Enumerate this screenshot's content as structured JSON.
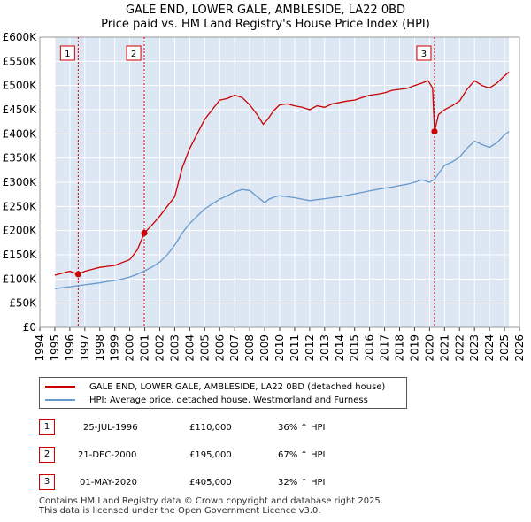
{
  "title_line1": "GALE END, LOWER GALE, AMBLESIDE, LA22 0BD",
  "title_line2": "Price paid vs. HM Land Registry's House Price Index (HPI)",
  "colors": {
    "property": "#cc0000",
    "hpi": "#6699cc",
    "marker_line": "#cc0000",
    "shade": "#dde6f3"
  },
  "legend": {
    "property_label": "GALE END, LOWER GALE, AMBLESIDE, LA22 0BD (detached house)",
    "hpi_label": "HPI: Average price, detached house, Westmorland and Furness"
  },
  "sales": [
    {
      "num": "1",
      "date": "25-JUL-1996",
      "price": "£110,000",
      "hpi_change": "36% ↑ HPI"
    },
    {
      "num": "2",
      "date": "21-DEC-2000",
      "price": "£195,000",
      "hpi_change": "67% ↑ HPI"
    },
    {
      "num": "3",
      "date": "01-MAY-2020",
      "price": "£405,000",
      "hpi_change": "32% ↑ HPI"
    }
  ],
  "footer": {
    "line1": "Contains HM Land Registry data © Crown copyright and database right 2025.",
    "line2": "This data is licensed under the Open Government Licence v3.0."
  },
  "chart_data": {
    "type": "line",
    "title": "GALE END, LOWER GALE, AMBLESIDE, LA22 0BD — Price paid vs. HM Land Registry's House Price Index (HPI)",
    "xlabel": "",
    "ylabel": "",
    "xlim": [
      1994,
      2026
    ],
    "ylim": [
      0,
      600000
    ],
    "x_ticks": [
      "1994",
      "1995",
      "1996",
      "1997",
      "1998",
      "1999",
      "2000",
      "2001",
      "2002",
      "2003",
      "2004",
      "2005",
      "2006",
      "2007",
      "2008",
      "2009",
      "2010",
      "2011",
      "2012",
      "2013",
      "2014",
      "2015",
      "2016",
      "2017",
      "2018",
      "2019",
      "2020",
      "2021",
      "2022",
      "2023",
      "2024",
      "2025",
      "2026"
    ],
    "y_ticks": [
      {
        "v": 0,
        "label": "£0"
      },
      {
        "v": 50000,
        "label": "£50K"
      },
      {
        "v": 100000,
        "label": "£100K"
      },
      {
        "v": 150000,
        "label": "£150K"
      },
      {
        "v": 200000,
        "label": "£200K"
      },
      {
        "v": 250000,
        "label": "£250K"
      },
      {
        "v": 300000,
        "label": "£300K"
      },
      {
        "v": 350000,
        "label": "£350K"
      },
      {
        "v": 400000,
        "label": "£400K"
      },
      {
        "v": 450000,
        "label": "£450K"
      },
      {
        "v": 500000,
        "label": "£500K"
      },
      {
        "v": 550000,
        "label": "£550K"
      },
      {
        "v": 600000,
        "label": "£600K"
      }
    ],
    "data_range": [
      1995.0,
      2025.3
    ],
    "sale_markers": [
      {
        "label": "1",
        "x": 1996.56,
        "y": 110000
      },
      {
        "label": "2",
        "x": 2000.97,
        "y": 195000
      },
      {
        "label": "3",
        "x": 2020.33,
        "y": 405000
      }
    ],
    "series": [
      {
        "name": "GALE END, LOWER GALE, AMBLESIDE, LA22 0BD (detached house)",
        "x": [
          1995.0,
          1995.5,
          1996.0,
          1996.56,
          1997.0,
          1997.5,
          1998.0,
          1998.5,
          1999.0,
          1999.5,
          2000.0,
          2000.5,
          2000.97,
          2001.5,
          2002.0,
          2002.5,
          2003.0,
          2003.5,
          2004.0,
          2004.5,
          2005.0,
          2005.5,
          2006.0,
          2006.5,
          2007.0,
          2007.5,
          2008.0,
          2008.5,
          2008.9,
          2009.2,
          2009.6,
          2010.0,
          2010.5,
          2011.0,
          2011.5,
          2012.0,
          2012.5,
          2013.0,
          2013.5,
          2014.0,
          2014.5,
          2015.0,
          2015.5,
          2016.0,
          2016.5,
          2017.0,
          2017.5,
          2018.0,
          2018.5,
          2019.0,
          2019.5,
          2019.9,
          2020.2,
          2020.33,
          2020.6,
          2021.0,
          2021.5,
          2022.0,
          2022.5,
          2023.0,
          2023.5,
          2024.0,
          2024.5,
          2025.0,
          2025.3
        ],
        "values": [
          108000,
          112000,
          116000,
          110000,
          116000,
          120000,
          124000,
          126000,
          128000,
          134000,
          140000,
          160000,
          195000,
          212000,
          230000,
          250000,
          270000,
          330000,
          370000,
          400000,
          430000,
          450000,
          470000,
          473000,
          480000,
          475000,
          460000,
          440000,
          420000,
          430000,
          448000,
          460000,
          462000,
          458000,
          455000,
          450000,
          458000,
          455000,
          462000,
          465000,
          468000,
          470000,
          475000,
          480000,
          482000,
          485000,
          490000,
          492000,
          494000,
          500000,
          505000,
          510000,
          495000,
          405000,
          440000,
          450000,
          458000,
          468000,
          492000,
          510000,
          500000,
          495000,
          505000,
          520000,
          528000
        ]
      },
      {
        "name": "HPI: Average price, detached house, Westmorland and Furness",
        "x": [
          1995.0,
          1995.5,
          1996.0,
          1996.5,
          1997.0,
          1997.5,
          1998.0,
          1998.5,
          1999.0,
          1999.5,
          2000.0,
          2000.5,
          2001.0,
          2001.5,
          2002.0,
          2002.5,
          2003.0,
          2003.5,
          2004.0,
          2004.5,
          2005.0,
          2005.5,
          2006.0,
          2006.5,
          2007.0,
          2007.5,
          2008.0,
          2008.5,
          2009.0,
          2009.3,
          2009.7,
          2010.0,
          2010.5,
          2011.0,
          2011.5,
          2012.0,
          2012.5,
          2013.0,
          2013.5,
          2014.0,
          2014.5,
          2015.0,
          2015.5,
          2016.0,
          2016.5,
          2017.0,
          2017.5,
          2018.0,
          2018.5,
          2019.0,
          2019.5,
          2020.0,
          2020.33,
          2020.6,
          2021.0,
          2021.5,
          2022.0,
          2022.5,
          2023.0,
          2023.5,
          2024.0,
          2024.5,
          2025.0,
          2025.3
        ],
        "values": [
          80000,
          82000,
          84000,
          86000,
          88000,
          90000,
          92000,
          95000,
          97000,
          100000,
          104000,
          110000,
          117000,
          125000,
          135000,
          150000,
          170000,
          195000,
          215000,
          230000,
          245000,
          255000,
          265000,
          272000,
          280000,
          285000,
          283000,
          270000,
          258000,
          265000,
          270000,
          272000,
          270000,
          268000,
          265000,
          262000,
          264000,
          266000,
          268000,
          270000,
          273000,
          276000,
          279000,
          282000,
          285000,
          288000,
          290000,
          293000,
          296000,
          300000,
          305000,
          300000,
          306000,
          318000,
          335000,
          342000,
          352000,
          370000,
          385000,
          378000,
          372000,
          382000,
          398000,
          405000
        ]
      }
    ]
  }
}
